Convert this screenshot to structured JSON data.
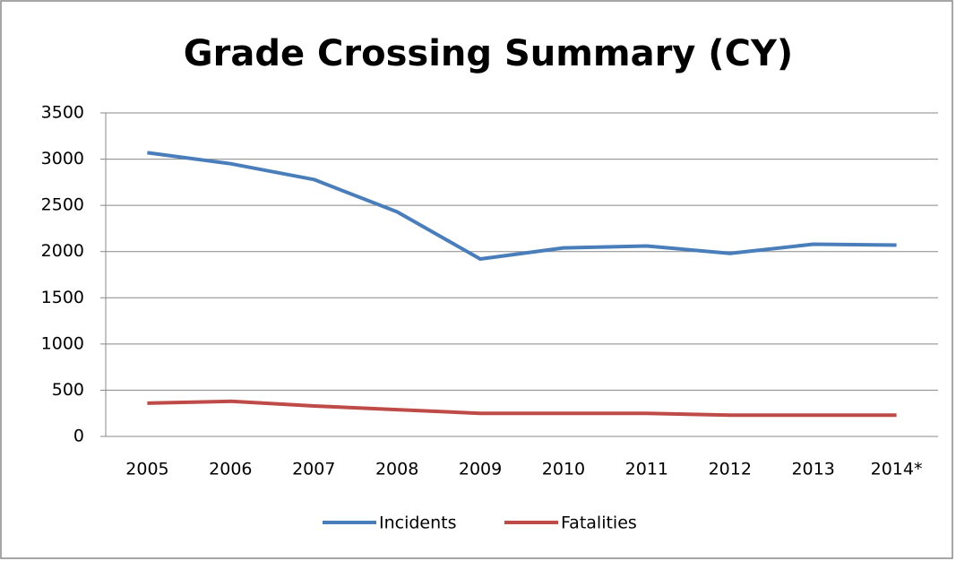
{
  "chart_data": {
    "type": "line",
    "title": "Grade Crossing Summary (CY)",
    "categories": [
      "2005",
      "2006",
      "2007",
      "2008",
      "2009",
      "2010",
      "2011",
      "2012",
      "2013",
      "2014*"
    ],
    "series": [
      {
        "name": "Incidents",
        "color": "#4a7ebb",
        "values": [
          3070,
          2950,
          2780,
          2430,
          1920,
          2040,
          2060,
          1980,
          2080,
          2070
        ]
      },
      {
        "name": "Fatalities",
        "color": "#be4b48",
        "values": [
          360,
          380,
          330,
          290,
          250,
          250,
          250,
          230,
          230,
          230
        ]
      }
    ],
    "ylim": [
      0,
      3500
    ],
    "yticks": [
      0,
      500,
      1000,
      1500,
      2000,
      2500,
      3000,
      3500
    ],
    "grid": true,
    "legend": "bottom"
  }
}
